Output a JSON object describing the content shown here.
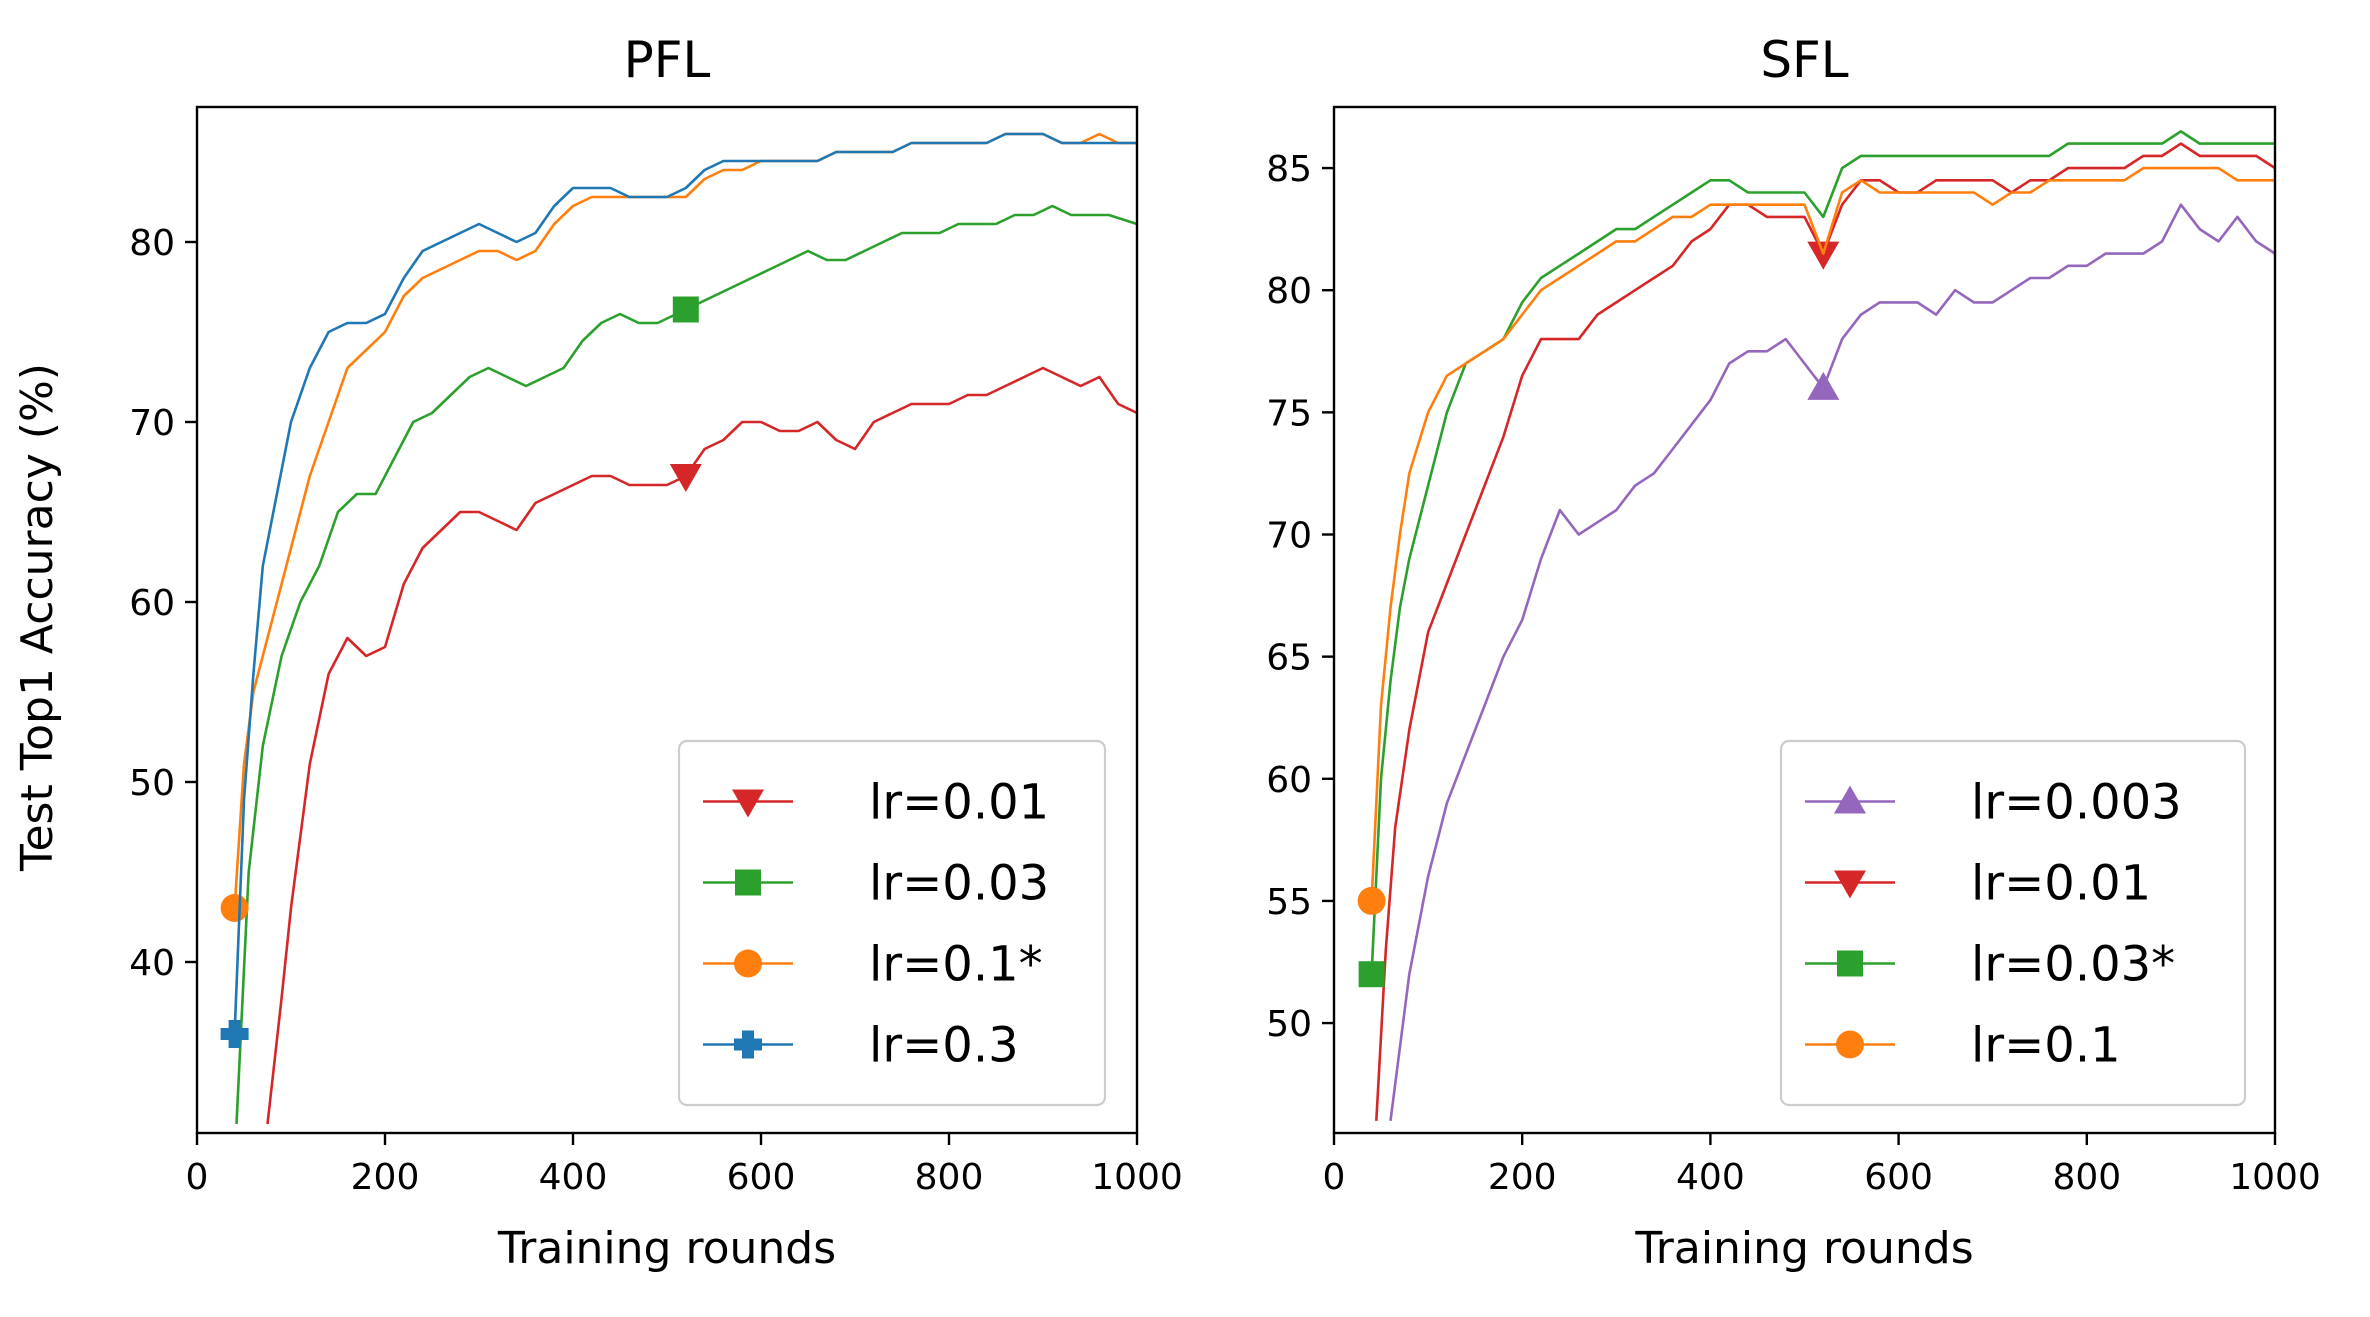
{
  "figure": {
    "ylabel": "Test Top1 Accuracy (%)"
  },
  "chart_data": [
    {
      "type": "line",
      "title": "PFL",
      "xlabel": "Training rounds",
      "ylabel": "Test Top1 Accuracy (%)",
      "xlim": [
        0,
        1000
      ],
      "ylim": [
        30.5,
        87.5
      ],
      "xticks": [
        0,
        200,
        400,
        600,
        800,
        1000
      ],
      "yticks": [
        40,
        50,
        60,
        70,
        80
      ],
      "legend_position": "lower-right",
      "series": [
        {
          "name": "lr=0.01",
          "color": "#d62728",
          "marker": "triangle-down",
          "marker_round": 520,
          "x": [
            75,
            90,
            100,
            120,
            140,
            160,
            180,
            200,
            220,
            240,
            260,
            280,
            300,
            320,
            340,
            360,
            380,
            400,
            420,
            440,
            460,
            480,
            500,
            520,
            540,
            560,
            580,
            600,
            620,
            640,
            660,
            680,
            700,
            720,
            740,
            760,
            780,
            800,
            820,
            840,
            860,
            880,
            900,
            920,
            940,
            960,
            980,
            1000
          ],
          "y": [
            31,
            38,
            43,
            51,
            56,
            58,
            57,
            57.5,
            61,
            63,
            64,
            65,
            65,
            64.5,
            64,
            65.5,
            66,
            66.5,
            67,
            67,
            66.5,
            66.5,
            66.5,
            67,
            68.5,
            69,
            70,
            70,
            69.5,
            69.5,
            70,
            69,
            68.5,
            70,
            70.5,
            71,
            71,
            71,
            71.5,
            71.5,
            72,
            72.5,
            73,
            72.5,
            72,
            72.5,
            71,
            70.5
          ]
        },
        {
          "name": "lr=0.03",
          "color": "#2ca02c",
          "marker": "square",
          "marker_round": 520,
          "x": [
            42,
            55,
            70,
            90,
            110,
            130,
            150,
            170,
            190,
            210,
            230,
            250,
            270,
            290,
            310,
            330,
            350,
            370,
            390,
            410,
            430,
            450,
            470,
            490,
            510,
            530,
            550,
            570,
            590,
            610,
            630,
            650,
            670,
            690,
            710,
            730,
            750,
            770,
            790,
            810,
            830,
            850,
            870,
            890,
            910,
            930,
            950,
            970,
            1000
          ],
          "y": [
            31,
            45,
            52,
            57,
            60,
            62,
            65,
            66,
            66,
            68,
            70,
            70.5,
            71.5,
            72.5,
            73,
            72.5,
            72,
            72.5,
            73,
            74.5,
            75.5,
            76,
            75.5,
            75.5,
            76,
            76.5,
            77,
            77.5,
            78,
            78.5,
            79,
            79.5,
            79,
            79,
            79.5,
            80,
            80.5,
            80.5,
            80.5,
            81,
            81,
            81,
            81.5,
            81.5,
            82,
            81.5,
            81.5,
            81.5,
            81
          ]
        },
        {
          "name": "lr=0.1*",
          "color": "#ff7f0e",
          "marker": "circle",
          "marker_round": 40,
          "x": [
            40,
            50,
            60,
            70,
            85,
            100,
            120,
            140,
            160,
            180,
            200,
            220,
            240,
            260,
            280,
            300,
            320,
            340,
            360,
            380,
            400,
            420,
            440,
            460,
            480,
            500,
            520,
            540,
            560,
            580,
            600,
            620,
            640,
            660,
            680,
            700,
            720,
            740,
            760,
            780,
            800,
            820,
            840,
            860,
            880,
            900,
            920,
            940,
            960,
            980,
            1000
          ],
          "y": [
            43,
            51,
            55,
            57,
            60,
            63,
            67,
            70,
            73,
            74,
            75,
            77,
            78,
            78.5,
            79,
            79.5,
            79.5,
            79,
            79.5,
            81,
            82,
            82.5,
            82.5,
            82.5,
            82.5,
            82.5,
            82.5,
            83.5,
            84,
            84,
            84.5,
            84.5,
            84.5,
            84.5,
            85,
            85,
            85,
            85,
            85.5,
            85.5,
            85.5,
            85.5,
            85.5,
            86,
            86,
            86,
            85.5,
            85.5,
            86,
            85.5,
            85.5
          ]
        },
        {
          "name": "lr=0.3",
          "color": "#1f77b4",
          "marker": "plus-filled",
          "marker_round": 40,
          "x": [
            40,
            50,
            60,
            70,
            85,
            100,
            120,
            140,
            160,
            180,
            200,
            220,
            240,
            260,
            280,
            300,
            320,
            340,
            360,
            380,
            400,
            420,
            440,
            460,
            480,
            500,
            520,
            540,
            560,
            580,
            600,
            620,
            640,
            660,
            680,
            700,
            720,
            740,
            760,
            780,
            800,
            820,
            840,
            860,
            880,
            900,
            920,
            940,
            960,
            980,
            1000
          ],
          "y": [
            36,
            49,
            56,
            62,
            66,
            70,
            73,
            75,
            75.5,
            75.5,
            76,
            78,
            79.5,
            80,
            80.5,
            81,
            80.5,
            80,
            80.5,
            82,
            83,
            83,
            83,
            82.5,
            82.5,
            82.5,
            83,
            84,
            84.5,
            84.5,
            84.5,
            84.5,
            84.5,
            84.5,
            85,
            85,
            85,
            85,
            85.5,
            85.5,
            85.5,
            85.5,
            85.5,
            86,
            86,
            86,
            85.5,
            85.5,
            85.5,
            85.5,
            85.5
          ]
        }
      ]
    },
    {
      "type": "line",
      "title": "SFL",
      "xlabel": "Training rounds",
      "ylabel": "",
      "xlim": [
        0,
        1000
      ],
      "ylim": [
        45.5,
        87.5
      ],
      "xticks": [
        0,
        200,
        400,
        600,
        800,
        1000
      ],
      "yticks": [
        50,
        55,
        60,
        65,
        70,
        75,
        80,
        85
      ],
      "legend_position": "lower-right",
      "series": [
        {
          "name": "lr=0.003",
          "color": "#9467bd",
          "marker": "triangle-up",
          "marker_round": 520,
          "x": [
            60,
            70,
            80,
            100,
            120,
            140,
            160,
            180,
            200,
            220,
            240,
            260,
            280,
            300,
            320,
            340,
            360,
            380,
            400,
            420,
            440,
            460,
            480,
            500,
            520,
            540,
            560,
            580,
            600,
            620,
            640,
            660,
            680,
            700,
            720,
            740,
            760,
            780,
            800,
            820,
            840,
            860,
            880,
            900,
            920,
            940,
            960,
            980,
            1000
          ],
          "y": [
            46,
            49,
            52,
            56,
            59,
            61,
            63,
            65,
            66.5,
            69,
            71,
            70,
            70.5,
            71,
            72,
            72.5,
            73.5,
            74.5,
            75.5,
            77,
            77.5,
            77.5,
            78,
            77,
            76,
            78,
            79,
            79.5,
            79.5,
            79.5,
            79,
            80,
            79.5,
            79.5,
            80,
            80.5,
            80.5,
            81,
            81,
            81.5,
            81.5,
            81.5,
            82,
            83.5,
            82.5,
            82,
            83,
            82,
            81.5
          ]
        },
        {
          "name": "lr=0.01",
          "color": "#d62728",
          "marker": "triangle-down",
          "marker_round": 520,
          "x": [
            45,
            55,
            65,
            80,
            100,
            120,
            140,
            160,
            180,
            200,
            220,
            240,
            260,
            280,
            300,
            320,
            340,
            360,
            380,
            400,
            420,
            440,
            460,
            480,
            500,
            520,
            540,
            560,
            580,
            600,
            620,
            640,
            660,
            680,
            700,
            720,
            740,
            760,
            780,
            800,
            820,
            840,
            860,
            880,
            900,
            920,
            940,
            960,
            980,
            1000
          ],
          "y": [
            46,
            53,
            58,
            62,
            66,
            68,
            70,
            72,
            74,
            76.5,
            78,
            78,
            78,
            79,
            79.5,
            80,
            80.5,
            81,
            82,
            82.5,
            83.5,
            83.5,
            83,
            83,
            83,
            81.5,
            83.5,
            84.5,
            84.5,
            84,
            84,
            84.5,
            84.5,
            84.5,
            84.5,
            84,
            84.5,
            84.5,
            85,
            85,
            85,
            85,
            85.5,
            85.5,
            86,
            85.5,
            85.5,
            85.5,
            85.5,
            85
          ]
        },
        {
          "name": "lr=0.03*",
          "color": "#2ca02c",
          "marker": "square",
          "marker_round": 40,
          "x": [
            40,
            50,
            60,
            70,
            80,
            100,
            120,
            140,
            160,
            180,
            200,
            220,
            240,
            260,
            280,
            300,
            320,
            340,
            360,
            380,
            400,
            420,
            440,
            460,
            480,
            500,
            520,
            540,
            560,
            580,
            600,
            620,
            640,
            660,
            680,
            700,
            720,
            740,
            760,
            780,
            800,
            820,
            840,
            860,
            880,
            900,
            920,
            940,
            960,
            980,
            1000
          ],
          "y": [
            52,
            60,
            64,
            67,
            69,
            72,
            75,
            77,
            77.5,
            78,
            79.5,
            80.5,
            81,
            81.5,
            82,
            82.5,
            82.5,
            83,
            83.5,
            84,
            84.5,
            84.5,
            84,
            84,
            84,
            84,
            83,
            85,
            85.5,
            85.5,
            85.5,
            85.5,
            85.5,
            85.5,
            85.5,
            85.5,
            85.5,
            85.5,
            85.5,
            86,
            86,
            86,
            86,
            86,
            86,
            86.5,
            86,
            86,
            86,
            86,
            86
          ]
        },
        {
          "name": "lr=0.1",
          "color": "#ff7f0e",
          "marker": "circle",
          "marker_round": 40,
          "x": [
            40,
            50,
            60,
            70,
            80,
            100,
            120,
            140,
            160,
            180,
            200,
            220,
            240,
            260,
            280,
            300,
            320,
            340,
            360,
            380,
            400,
            420,
            440,
            460,
            480,
            500,
            520,
            540,
            560,
            580,
            600,
            620,
            640,
            660,
            680,
            700,
            720,
            740,
            760,
            780,
            800,
            820,
            840,
            860,
            880,
            900,
            920,
            940,
            960,
            980,
            1000
          ],
          "y": [
            55,
            63,
            67,
            70,
            72.5,
            75,
            76.5,
            77,
            77.5,
            78,
            79,
            80,
            80.5,
            81,
            81.5,
            82,
            82,
            82.5,
            83,
            83,
            83.5,
            83.5,
            83.5,
            83.5,
            83.5,
            83.5,
            81.5,
            84,
            84.5,
            84,
            84,
            84,
            84,
            84,
            84,
            83.5,
            84,
            84,
            84.5,
            84.5,
            84.5,
            84.5,
            84.5,
            85,
            85,
            85,
            85,
            85,
            84.5,
            84.5,
            84.5
          ]
        }
      ]
    }
  ]
}
